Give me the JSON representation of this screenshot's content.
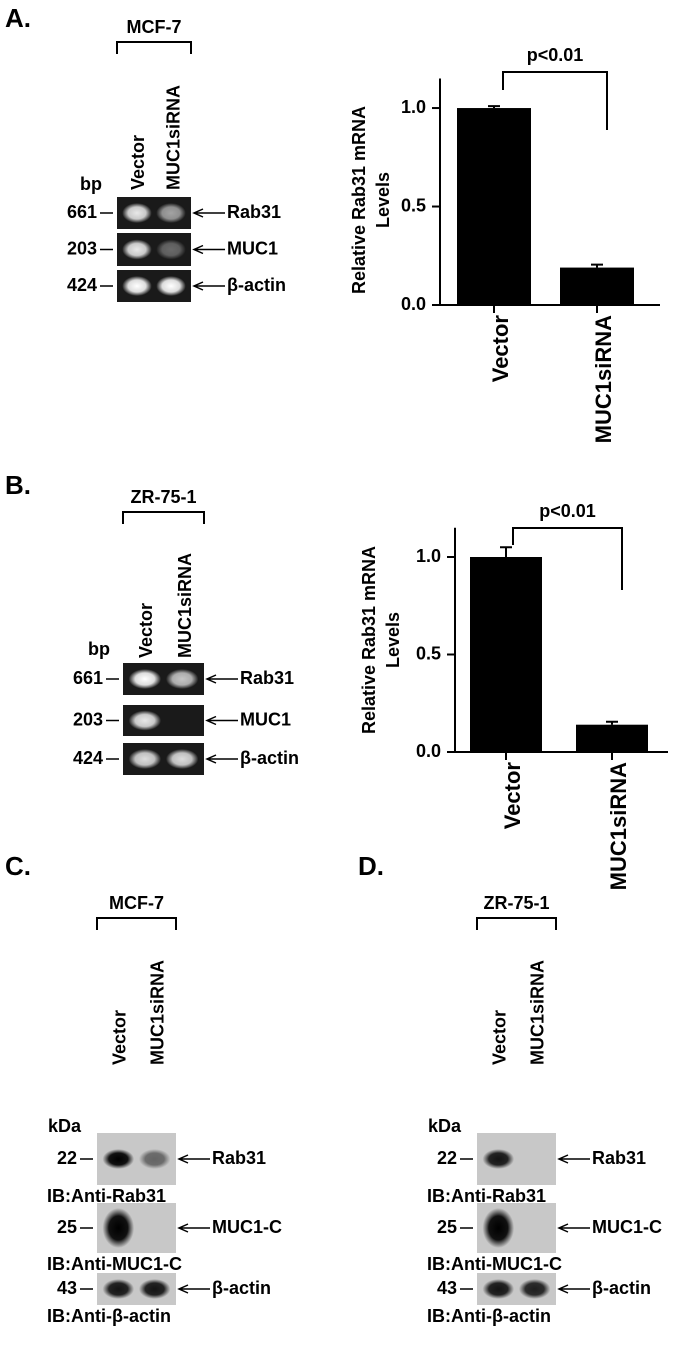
{
  "panels": [
    {
      "letter": "A.",
      "cell_line": "MCF-7",
      "lanes": [
        "Vector",
        "MUC1siRNA"
      ],
      "size_unit": "bp",
      "bands": [
        {
          "size": 661,
          "label": "Rab31"
        },
        {
          "size": 203,
          "label": "MUC1"
        },
        {
          "size": 424,
          "label": "β-actin"
        }
      ]
    },
    {
      "letter": "B.",
      "cell_line": "ZR-75-1",
      "lanes": [
        "Vector",
        "MUC1siRNA"
      ],
      "size_unit": "bp",
      "bands": [
        {
          "size": 661,
          "label": "Rab31"
        },
        {
          "size": 203,
          "label": "MUC1"
        },
        {
          "size": 424,
          "label": "β-actin"
        }
      ]
    },
    {
      "letter": "C.",
      "cell_line": "MCF-7",
      "lanes": [
        "Vector",
        "MUC1siRNA"
      ],
      "size_unit": "kDa",
      "bands": [
        {
          "size": 22,
          "label": "Rab31",
          "ib": "IB:Anti-Rab31"
        },
        {
          "size": 25,
          "label": "MUC1-C",
          "ib": "IB:Anti-MUC1-C"
        },
        {
          "size": 43,
          "label": "β-actin",
          "ib": "IB:Anti-β-actin"
        }
      ]
    },
    {
      "letter": "D.",
      "cell_line": "ZR-75-1",
      "lanes": [
        "Vector",
        "MUC1siRNA"
      ],
      "size_unit": "kDa",
      "bands": [
        {
          "size": 22,
          "label": "Rab31",
          "ib": "IB:Anti-Rab31"
        },
        {
          "size": 25,
          "label": "MUC1-C",
          "ib": "IB:Anti-MUC1-C"
        },
        {
          "size": 43,
          "label": "β-actin",
          "ib": "IB:Anti-β-actin"
        }
      ]
    }
  ],
  "chart_data": [
    {
      "type": "bar",
      "ylabel": [
        "Relative Rab31 mRNA",
        "Levels"
      ],
      "categories": [
        "Vector",
        "MUC1siRNA"
      ],
      "values": [
        1.0,
        0.19
      ],
      "errors": [
        0.01,
        0.015
      ],
      "color": "#000000",
      "annotation": "p<0.01",
      "ylim": [
        0,
        1.15
      ],
      "yticks": [
        {
          "value": 0,
          "label": "0.0"
        },
        {
          "value": 0.5,
          "label": "0.5"
        },
        {
          "value": 1,
          "label": "1.0"
        }
      ]
    },
    {
      "type": "bar",
      "ylabel": [
        "Relative Rab31 mRNA",
        "Levels"
      ],
      "categories": [
        "Vector",
        "MUC1siRNA"
      ],
      "values": [
        1.0,
        0.14
      ],
      "errors": [
        0.05,
        0.015
      ],
      "color": "#000000",
      "annotation": "p<0.01",
      "ylim": [
        0,
        1.15
      ],
      "yticks": [
        {
          "value": 0,
          "label": "0.0"
        },
        {
          "value": 0.5,
          "label": "0.5"
        },
        {
          "value": 1,
          "label": "1.0"
        }
      ]
    }
  ]
}
